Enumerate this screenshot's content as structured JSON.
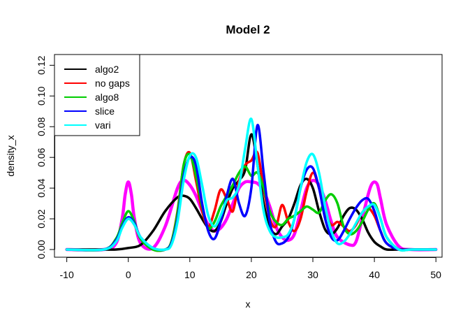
{
  "chart_data": {
    "type": "line",
    "title": "Model 2",
    "xlabel": "x",
    "ylabel": "density_x",
    "xlim": [
      -12,
      51
    ],
    "ylim": [
      -0.005,
      0.127
    ],
    "xticks": [
      -10,
      0,
      10,
      20,
      30,
      40,
      50
    ],
    "yticks": [
      0.0,
      0.02,
      0.04,
      0.06,
      0.08,
      0.1,
      0.12
    ],
    "ytick_labels": [
      "0.00",
      "0.02",
      "0.04",
      "0.06",
      "0.08",
      "0.10",
      "0.12"
    ],
    "grid": false,
    "legend_position": "top-left",
    "legend": [
      {
        "name": "algo2",
        "color": "#000000"
      },
      {
        "name": "no gaps",
        "color": "#ff0000"
      },
      {
        "name": "algo8",
        "color": "#00cd00"
      },
      {
        "name": "slice",
        "color": "#0000ff"
      },
      {
        "name": "vari",
        "color": "#00ffff"
      }
    ],
    "series": [
      {
        "color": "#ff00ff",
        "x": [
          -10,
          -4,
          -2,
          -1,
          -0.5,
          0,
          0.5,
          1,
          2,
          4,
          6,
          8,
          9,
          10,
          11,
          12,
          13,
          14,
          15,
          16,
          17,
          18,
          19,
          20,
          21,
          22,
          23,
          24,
          25,
          26,
          27,
          28,
          29,
          30,
          31,
          32,
          33,
          34,
          36,
          37,
          38,
          39,
          39.5,
          40,
          40.5,
          41,
          42,
          44,
          46,
          50
        ],
        "y": [
          0,
          0,
          0.004,
          0.02,
          0.036,
          0.044,
          0.036,
          0.02,
          0.004,
          0.001,
          0.015,
          0.04,
          0.045,
          0.042,
          0.035,
          0.025,
          0.016,
          0.012,
          0.014,
          0.02,
          0.03,
          0.04,
          0.044,
          0.044,
          0.043,
          0.038,
          0.028,
          0.015,
          0.008,
          0.006,
          0.01,
          0.025,
          0.04,
          0.045,
          0.042,
          0.032,
          0.018,
          0.008,
          0.003,
          0.005,
          0.02,
          0.036,
          0.042,
          0.044,
          0.042,
          0.033,
          0.016,
          0.002,
          0,
          0
        ]
      },
      {
        "color": "#000000",
        "x": [
          -10,
          -4,
          -2,
          0,
          2,
          4,
          6,
          8,
          9,
          10,
          11,
          12,
          13,
          14,
          15,
          16,
          17,
          18,
          19,
          20,
          21,
          22,
          23,
          24,
          25,
          26,
          27,
          28,
          29,
          30,
          31,
          32,
          33,
          34,
          35,
          36,
          37,
          38,
          39,
          40,
          41,
          42,
          44,
          46,
          50
        ],
        "y": [
          0,
          0,
          0,
          0.001,
          0.003,
          0.012,
          0.025,
          0.034,
          0.035,
          0.033,
          0.027,
          0.02,
          0.014,
          0.012,
          0.018,
          0.03,
          0.04,
          0.045,
          0.052,
          0.075,
          0.055,
          0.03,
          0.015,
          0.01,
          0.015,
          0.02,
          0.03,
          0.042,
          0.046,
          0.04,
          0.025,
          0.013,
          0.01,
          0.014,
          0.022,
          0.027,
          0.026,
          0.02,
          0.011,
          0.005,
          0.002,
          0,
          0,
          0,
          0
        ]
      },
      {
        "color": "#ff0000",
        "x": [
          -10,
          -4,
          -2,
          -1,
          0,
          1,
          2,
          4,
          6,
          7,
          8,
          9,
          10,
          11,
          12,
          13,
          14,
          15,
          16,
          17,
          18,
          19,
          20,
          21,
          22,
          23,
          24,
          25,
          26,
          27,
          28,
          29,
          30,
          31,
          32,
          33,
          34,
          35,
          36,
          37,
          38,
          39,
          40,
          41,
          42,
          44,
          46,
          50
        ],
        "y": [
          0,
          0,
          0.006,
          0.015,
          0.02,
          0.016,
          0.007,
          0,
          0,
          0.005,
          0.025,
          0.055,
          0.063,
          0.045,
          0.025,
          0.015,
          0.025,
          0.039,
          0.033,
          0.025,
          0.045,
          0.055,
          0.058,
          0.063,
          0.04,
          0.02,
          0.015,
          0.029,
          0.018,
          0.012,
          0.02,
          0.038,
          0.05,
          0.04,
          0.025,
          0.016,
          0.018,
          0.015,
          0.012,
          0.016,
          0.024,
          0.027,
          0.022,
          0.012,
          0.004,
          0,
          0,
          0
        ]
      },
      {
        "color": "#00cd00",
        "x": [
          -10,
          -4,
          -2,
          -1,
          0,
          1,
          2,
          4,
          6,
          7,
          8,
          9,
          10,
          11,
          12,
          13,
          14,
          15,
          16,
          17,
          18,
          19,
          20,
          21,
          22,
          23,
          24,
          25,
          26,
          27,
          28,
          29,
          30,
          31,
          32,
          33,
          34,
          35,
          36,
          37,
          38,
          39,
          40,
          41,
          42,
          44,
          46,
          50
        ],
        "y": [
          0,
          0,
          0.007,
          0.017,
          0.025,
          0.018,
          0.007,
          0,
          0,
          0.005,
          0.024,
          0.055,
          0.062,
          0.048,
          0.028,
          0.014,
          0.018,
          0.028,
          0.035,
          0.042,
          0.05,
          0.054,
          0.048,
          0.05,
          0.04,
          0.025,
          0.018,
          0.016,
          0.02,
          0.022,
          0.025,
          0.028,
          0.026,
          0.024,
          0.032,
          0.036,
          0.03,
          0.015,
          0.01,
          0.012,
          0.018,
          0.026,
          0.03,
          0.02,
          0.008,
          0,
          0,
          0
        ]
      },
      {
        "color": "#0000ff",
        "x": [
          -10,
          -4,
          -2,
          -1,
          0,
          1,
          2,
          4,
          6,
          7,
          8,
          9,
          10,
          11,
          12,
          13,
          14,
          15,
          16,
          17,
          18,
          19,
          20,
          21,
          22,
          23,
          24,
          25,
          26,
          27,
          28,
          29,
          30,
          31,
          32,
          33,
          34,
          35,
          36,
          37,
          38,
          39,
          40,
          41,
          42,
          44,
          46,
          50
        ],
        "y": [
          0,
          0,
          0.006,
          0.015,
          0.021,
          0.017,
          0.008,
          0.001,
          0,
          0.004,
          0.02,
          0.048,
          0.06,
          0.055,
          0.03,
          0.012,
          0.007,
          0.018,
          0.035,
          0.046,
          0.03,
          0.022,
          0.04,
          0.081,
          0.05,
          0.018,
          0.005,
          0.004,
          0.008,
          0.02,
          0.04,
          0.052,
          0.053,
          0.04,
          0.02,
          0.008,
          0.006,
          0.012,
          0.02,
          0.027,
          0.032,
          0.033,
          0.025,
          0.012,
          0.004,
          0,
          0,
          0
        ]
      },
      {
        "color": "#00ffff",
        "x": [
          -10,
          -4,
          -2,
          -1,
          0,
          1,
          2,
          4,
          6,
          7,
          8,
          9,
          10,
          11,
          12,
          13,
          14,
          15,
          16,
          17,
          18,
          19,
          20,
          21,
          22,
          23,
          24,
          25,
          26,
          27,
          28,
          29,
          30,
          31,
          32,
          33,
          34,
          35,
          36,
          37,
          38,
          39,
          40,
          41,
          42,
          44,
          46,
          50
        ],
        "y": [
          0,
          0,
          0.005,
          0.014,
          0.02,
          0.016,
          0.008,
          0.001,
          0,
          0.003,
          0.018,
          0.045,
          0.061,
          0.06,
          0.042,
          0.022,
          0.015,
          0.022,
          0.032,
          0.034,
          0.042,
          0.066,
          0.085,
          0.055,
          0.025,
          0.012,
          0.008,
          0.008,
          0.01,
          0.02,
          0.04,
          0.057,
          0.062,
          0.05,
          0.028,
          0.012,
          0.004,
          0.005,
          0.01,
          0.017,
          0.024,
          0.028,
          0.029,
          0.02,
          0.008,
          0,
          0,
          0
        ]
      }
    ]
  }
}
